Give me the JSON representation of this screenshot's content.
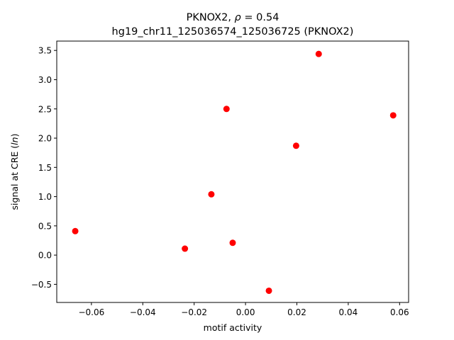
{
  "chart_data": {
    "type": "scatter",
    "title_gene": "PKNOX2, ",
    "title_rho_symbol": "ρ",
    "title_rho_value": " = 0.54",
    "title_line2": "hg19_chr11_125036574_125036725 (PKNOX2)",
    "xlabel": "motif activity",
    "ylabel_prefix": "signal at CRE (",
    "ylabel_italic": "ln",
    "ylabel_suffix": ")",
    "xlim": [
      -0.0735,
      0.0635
    ],
    "ylim": [
      -0.81,
      3.66
    ],
    "x_ticks": [
      -0.06,
      -0.04,
      -0.02,
      0.0,
      0.02,
      0.04,
      0.06
    ],
    "x_tick_labels": [
      "−0.06",
      "−0.04",
      "−0.02",
      "0.00",
      "0.02",
      "0.04",
      "0.06"
    ],
    "y_ticks": [
      -0.5,
      0.0,
      0.5,
      1.0,
      1.5,
      2.0,
      2.5,
      3.0,
      3.5
    ],
    "y_tick_labels": [
      "−0.5",
      "0.0",
      "0.5",
      "1.0",
      "1.5",
      "2.0",
      "2.5",
      "3.0",
      "3.5"
    ],
    "point_color": "#ff0000",
    "grid": false,
    "points": [
      {
        "x": -0.0663,
        "y": 0.41
      },
      {
        "x": -0.0236,
        "y": 0.11
      },
      {
        "x": -0.0133,
        "y": 1.04
      },
      {
        "x": -0.0074,
        "y": 2.5
      },
      {
        "x": -0.005,
        "y": 0.21
      },
      {
        "x": 0.0091,
        "y": -0.61
      },
      {
        "x": 0.0197,
        "y": 1.87
      },
      {
        "x": 0.0285,
        "y": 3.44
      },
      {
        "x": 0.0575,
        "y": 2.39
      }
    ]
  }
}
